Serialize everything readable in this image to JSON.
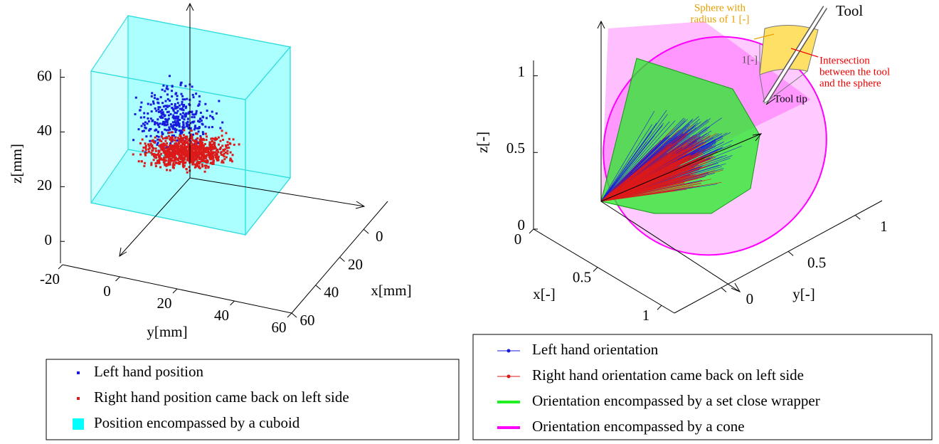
{
  "chart_data": [
    {
      "type": "scatter3d",
      "xlabel": "x[mm]",
      "ylabel": "y[mm]",
      "zlabel": "z[mm]",
      "xlim": [
        -20,
        60
      ],
      "ylim": [
        -20,
        60
      ],
      "zlim": [
        -8,
        63
      ],
      "xticks": [
        0,
        20,
        40,
        60
      ],
      "yticks": [
        -20,
        0,
        20,
        40,
        60
      ],
      "zticks": [
        0,
        20,
        40,
        60
      ],
      "series": [
        {
          "name": "Left hand position",
          "color": "#1a1adc"
        },
        {
          "name": "Right hand position came back on left side",
          "color": "#dc1a1a"
        },
        {
          "name": "Position encompassed by a cuboid",
          "color": "#00ffff"
        }
      ]
    },
    {
      "type": "cone3d",
      "xlabel": "x[-]",
      "ylabel": "y[-]",
      "zlabel": "z[-]",
      "xlim": [
        0,
        1.1
      ],
      "ylim": [
        -0.35,
        1.2
      ],
      "zlim": [
        0,
        1.1
      ],
      "xticks": [
        0,
        0.5,
        1
      ],
      "yticks": [
        0,
        0.5,
        1
      ],
      "zticks": [
        0,
        0.5,
        1
      ],
      "series": [
        {
          "name": "Left hand orientation",
          "color": "#1a1adc"
        },
        {
          "name": "Right hand orientation came back on left side",
          "color": "#dc1a1a"
        },
        {
          "name": "Orientation encompassed by a set close wrapper",
          "color": "#22ee22"
        },
        {
          "name": "Orientation encompassed by a cone",
          "color": "#ff00ff"
        }
      ],
      "annotations": {
        "sphere": [
          "Sphere with",
          "radius of 1 [-]"
        ],
        "tool": "Tool",
        "radius": "1[-]",
        "intersection": [
          "Intersection",
          "between the tool",
          "and the sphere"
        ],
        "tool_tip": "Tool tip"
      }
    }
  ]
}
